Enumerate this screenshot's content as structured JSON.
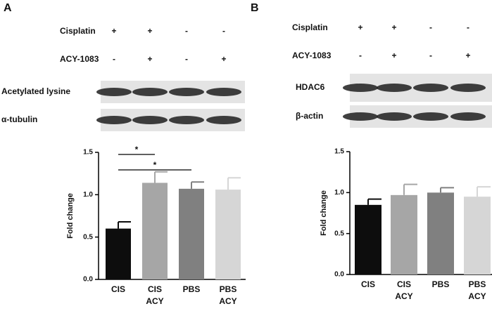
{
  "panels": [
    {
      "letter": "A",
      "treatments": [
        {
          "label": "Cisplatin",
          "signs": [
            "+",
            "+",
            "-",
            "-"
          ]
        },
        {
          "label": "ACY-1083",
          "signs": [
            "-",
            "+",
            "-",
            "+"
          ]
        }
      ],
      "blots": [
        {
          "label": "Acetylated lysine"
        },
        {
          "label": "α-tubulin"
        }
      ]
    },
    {
      "letter": "B",
      "treatments": [
        {
          "label": "Cisplatin",
          "signs": [
            "+",
            "+",
            "-",
            "-"
          ]
        },
        {
          "label": "ACY-1083",
          "signs": [
            "-",
            "+",
            "-",
            "+"
          ]
        }
      ],
      "blots": [
        {
          "label": "HDAC6"
        },
        {
          "label": "β-actin"
        }
      ]
    }
  ],
  "chart_data": [
    {
      "type": "bar",
      "y_label": "Fold change",
      "categories": [
        "CIS",
        "CIS ACY",
        "PBS",
        "PBS ACY"
      ],
      "values": [
        0.6,
        1.14,
        1.07,
        1.06
      ],
      "errors": [
        0.08,
        0.13,
        0.08,
        0.14
      ],
      "colors": [
        "#0d0d0d",
        "#a6a6a6",
        "#808080",
        "#d6d6d6"
      ],
      "ylim": [
        0,
        1.5
      ],
      "yticks": [
        {
          "value": 0,
          "label": "0.0"
        },
        {
          "value": 0.5,
          "label": "0.5"
        },
        {
          "value": 1,
          "label": "1.0"
        },
        {
          "value": 1.5,
          "label": "1.5"
        }
      ],
      "comparisons": [
        {
          "label": "*",
          "between": [
            "CIS",
            "CIS ACY"
          ]
        },
        {
          "label": "*",
          "between": [
            "CIS",
            "PBS"
          ]
        }
      ]
    },
    {
      "type": "bar",
      "y_label": "Fold change",
      "categories": [
        "CIS",
        "CIS ACY",
        "PBS",
        "PBS ACY"
      ],
      "values": [
        0.85,
        0.97,
        1.0,
        0.95
      ],
      "errors": [
        0.07,
        0.13,
        0.06,
        0.12
      ],
      "colors": [
        "#0d0d0d",
        "#a6a6a6",
        "#808080",
        "#d6d6d6"
      ],
      "ylim": [
        0,
        1.5
      ],
      "yticks": [
        {
          "value": 0,
          "label": "0.0"
        },
        {
          "value": 0.5,
          "label": "0.5"
        },
        {
          "value": 1,
          "label": "1.0"
        },
        {
          "value": 1.5,
          "label": "1.5"
        }
      ],
      "comparisons": []
    }
  ]
}
